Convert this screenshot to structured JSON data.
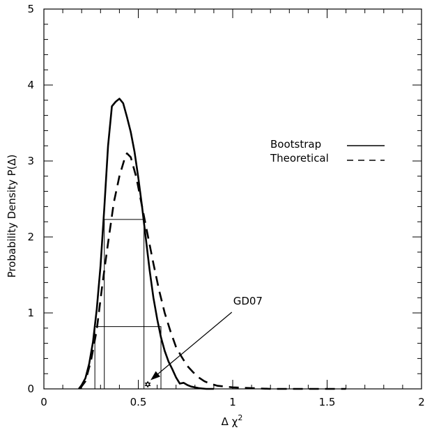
{
  "chart_data": {
    "type": "line",
    "xlabel": "Δ χ",
    "xlabel_superscript": "2",
    "ylabel": "Probability Density P(Δ)",
    "xlim": [
      0,
      2
    ],
    "ylim": [
      0,
      5
    ],
    "x_ticks": [
      "0",
      "0.5",
      "1",
      "1.5",
      "2"
    ],
    "y_ticks": [
      "0",
      "1",
      "2",
      "3",
      "4",
      "5"
    ],
    "series": [
      {
        "name": "Bootstrap",
        "style": "solid",
        "x": [
          0.185,
          0.2,
          0.22,
          0.24,
          0.26,
          0.28,
          0.3,
          0.32,
          0.34,
          0.36,
          0.38,
          0.4,
          0.42,
          0.44,
          0.46,
          0.48,
          0.5,
          0.52,
          0.54,
          0.56,
          0.58,
          0.6,
          0.62,
          0.64,
          0.66,
          0.68,
          0.7,
          0.72,
          0.74,
          0.76,
          0.78,
          0.8,
          0.82,
          0.84,
          0.86,
          0.88,
          0.9
        ],
        "y": [
          0.0,
          0.05,
          0.14,
          0.33,
          0.62,
          1.05,
          1.62,
          2.38,
          3.2,
          3.72,
          3.78,
          3.82,
          3.76,
          3.58,
          3.38,
          3.12,
          2.78,
          2.4,
          1.98,
          1.56,
          1.2,
          0.92,
          0.68,
          0.5,
          0.36,
          0.26,
          0.15,
          0.07,
          0.08,
          0.05,
          0.03,
          0.02,
          0.01,
          0.005,
          0.0,
          0.0,
          0.0
        ]
      },
      {
        "name": "Theoretical",
        "style": "dashed",
        "x": [
          0.19,
          0.22,
          0.25,
          0.28,
          0.31,
          0.34,
          0.37,
          0.4,
          0.43,
          0.44,
          0.46,
          0.49,
          0.52,
          0.55,
          0.58,
          0.61,
          0.64,
          0.67,
          0.7,
          0.73,
          0.76,
          0.79,
          0.82,
          0.85,
          0.88,
          0.92,
          0.96,
          1.0,
          1.05,
          1.1,
          1.15,
          1.2,
          1.3,
          1.4,
          1.5,
          1.6
        ],
        "y": [
          0.0,
          0.1,
          0.38,
          0.78,
          1.38,
          1.92,
          2.45,
          2.8,
          3.05,
          3.1,
          3.05,
          2.78,
          2.4,
          2.02,
          1.65,
          1.3,
          1.0,
          0.76,
          0.55,
          0.42,
          0.3,
          0.22,
          0.15,
          0.1,
          0.07,
          0.04,
          0.03,
          0.02,
          0.015,
          0.01,
          0.005,
          0.0,
          0.0,
          0.0,
          0.0,
          0.0
        ]
      }
    ],
    "intervals": [
      {
        "x0": 0.32,
        "x1": 0.53,
        "y": 2.23
      },
      {
        "x0": 0.27,
        "x1": 0.62,
        "y": 0.82
      }
    ],
    "marker": {
      "x": 0.55,
      "y": 0.06
    },
    "annotation": {
      "text": "GD07",
      "x": 1.01,
      "y": 1.11
    },
    "legend_position": "top-right",
    "grid": false
  }
}
